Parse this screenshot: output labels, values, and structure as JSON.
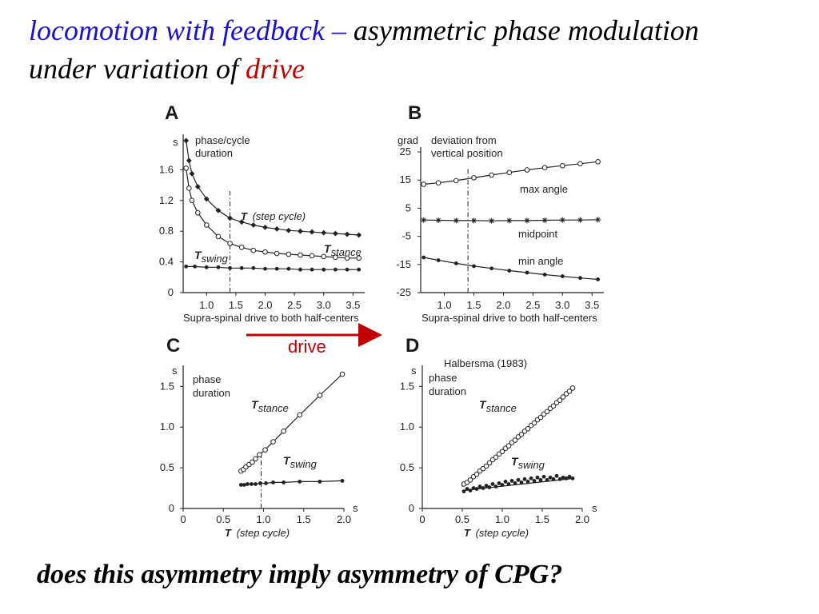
{
  "slide": {
    "title_part1": "locomotion with feedback –",
    "title_part2": " asymmetric phase modulation",
    "title_part3": "under variation of ",
    "title_part4": "drive",
    "question": "does this asymmetry imply asymmetry of CPG?",
    "arrow_label": "drive",
    "colors": {
      "title_blue": "#1a10d6",
      "accent_red": "#c00000",
      "ink": "#222222"
    }
  },
  "chart_data": [
    {
      "panel": "A",
      "type": "line",
      "ylabel_unit": "s",
      "note_line1": "phase/cycle",
      "note_line2": "duration",
      "xlabel": "Supra-spinal drive to both half-centers",
      "xticks": [
        "1.0",
        "1.5",
        "2.0",
        "2.5",
        "3.0",
        "3.5"
      ],
      "yticks": [
        "0",
        "0.4",
        "0.8",
        "1.2",
        "1.6"
      ],
      "xlim": [
        0.6,
        3.7
      ],
      "ylim": [
        0,
        2.0
      ],
      "reference_line_x": 1.4,
      "series": [
        {
          "name": "T",
          "name_suffix": "(step cycle)",
          "marker": "diamond",
          "x": [
            0.65,
            0.7,
            0.75,
            0.85,
            1.0,
            1.2,
            1.4,
            1.6,
            1.8,
            2.0,
            2.2,
            2.4,
            2.6,
            2.8,
            3.0,
            3.2,
            3.4,
            3.6
          ],
          "y": [
            1.98,
            1.72,
            1.55,
            1.38,
            1.22,
            1.07,
            0.97,
            0.92,
            0.88,
            0.85,
            0.83,
            0.81,
            0.8,
            0.79,
            0.78,
            0.77,
            0.76,
            0.75
          ]
        },
        {
          "name": "T",
          "name_sub": "stance",
          "marker": "open-circle",
          "x": [
            0.65,
            0.7,
            0.75,
            0.85,
            1.0,
            1.2,
            1.4,
            1.6,
            1.8,
            2.0,
            2.2,
            2.4,
            2.6,
            2.8,
            3.0,
            3.2,
            3.4,
            3.6
          ],
          "y": [
            1.62,
            1.36,
            1.2,
            1.04,
            0.88,
            0.73,
            0.64,
            0.59,
            0.55,
            0.53,
            0.51,
            0.5,
            0.49,
            0.48,
            0.47,
            0.46,
            0.45,
            0.45
          ]
        },
        {
          "name": "T",
          "name_sub": "swing",
          "marker": "dot",
          "x": [
            0.65,
            0.8,
            1.0,
            1.2,
            1.4,
            1.6,
            1.8,
            2.0,
            2.2,
            2.4,
            2.6,
            2.8,
            3.0,
            3.2,
            3.4,
            3.6
          ],
          "y": [
            0.34,
            0.34,
            0.33,
            0.33,
            0.32,
            0.32,
            0.32,
            0.31,
            0.31,
            0.31,
            0.3,
            0.3,
            0.3,
            0.3,
            0.3,
            0.3
          ]
        }
      ]
    },
    {
      "panel": "B",
      "type": "line",
      "ylabel_unit": "grad",
      "note_line1": "deviation from",
      "note_line2": "vertical position",
      "xlabel": "Supra-spinal drive to both half-centers",
      "xticks": [
        "1.0",
        "1.5",
        "2.0",
        "2.5",
        "3.0",
        "3.5"
      ],
      "yticks": [
        "25",
        "15",
        "5",
        "-5",
        "-15",
        "-25"
      ],
      "xlim": [
        0.6,
        3.7
      ],
      "ylim": [
        -25,
        25
      ],
      "reference_line_x": 1.4,
      "series": [
        {
          "name": "max angle",
          "marker": "open-circle",
          "x": [
            0.65,
            0.9,
            1.2,
            1.5,
            1.8,
            2.1,
            2.4,
            2.7,
            3.0,
            3.3,
            3.6
          ],
          "y": [
            13.5,
            14.0,
            14.8,
            15.8,
            16.8,
            17.7,
            18.6,
            19.4,
            20.1,
            20.8,
            21.5
          ]
        },
        {
          "name": "midpoint",
          "marker": "asterisk",
          "x": [
            0.65,
            0.9,
            1.2,
            1.5,
            1.8,
            2.1,
            2.4,
            2.7,
            3.0,
            3.3,
            3.6
          ],
          "y": [
            0.8,
            0.7,
            0.6,
            0.6,
            0.5,
            0.6,
            0.6,
            0.7,
            0.8,
            0.8,
            0.9
          ]
        },
        {
          "name": "min angle",
          "marker": "dot",
          "x": [
            0.65,
            0.9,
            1.2,
            1.5,
            1.8,
            2.1,
            2.4,
            2.7,
            3.0,
            3.3,
            3.6
          ],
          "y": [
            -12.5,
            -13.5,
            -14.6,
            -15.6,
            -16.4,
            -17.2,
            -17.9,
            -18.6,
            -19.2,
            -19.8,
            -20.3
          ]
        }
      ]
    },
    {
      "panel": "C",
      "type": "line",
      "ylabel_unit": "s",
      "xlabel_unit": "s",
      "note_line1": "phase",
      "note_line2": "duration",
      "xlabel_T": "T",
      "xlabel": "(step cycle)",
      "xticks": [
        "0",
        "0.5",
        "1.0",
        "1.5",
        "2.0"
      ],
      "yticks": [
        "0",
        "0.5",
        "1.0",
        "1.5"
      ],
      "xlim": [
        0,
        2.0
      ],
      "ylim": [
        0,
        1.7
      ],
      "reference_line_x": 0.97,
      "series": [
        {
          "name": "T",
          "name_sub": "stance",
          "marker": "open-circle",
          "x": [
            0.72,
            0.75,
            0.78,
            0.82,
            0.86,
            0.9,
            0.95,
            1.02,
            1.12,
            1.25,
            1.45,
            1.7,
            1.98
          ],
          "y": [
            0.46,
            0.48,
            0.51,
            0.54,
            0.57,
            0.61,
            0.66,
            0.72,
            0.82,
            0.95,
            1.15,
            1.39,
            1.65
          ]
        },
        {
          "name": "T",
          "name_sub": "swing",
          "marker": "dot",
          "x": [
            0.72,
            0.76,
            0.8,
            0.85,
            0.9,
            0.96,
            1.03,
            1.12,
            1.25,
            1.45,
            1.7,
            1.98
          ],
          "y": [
            0.29,
            0.29,
            0.3,
            0.3,
            0.3,
            0.31,
            0.31,
            0.32,
            0.32,
            0.33,
            0.33,
            0.34
          ]
        }
      ]
    },
    {
      "panel": "D",
      "type": "scatter",
      "title": "Halbersma (1983)",
      "ylabel_unit": "s",
      "xlabel_unit": "s",
      "note_line1": "phase",
      "note_line2": "duration",
      "xlabel_T": "T",
      "xlabel": "(step cycle)",
      "xticks": [
        "0",
        "0.5",
        "1.0",
        "1.5",
        "2.0"
      ],
      "yticks": [
        "0",
        "0.5",
        "1.0",
        "1.5"
      ],
      "xlim": [
        0,
        2.0
      ],
      "ylim": [
        0,
        1.7
      ],
      "series": [
        {
          "name": "T",
          "name_sub": "stance",
          "marker": "open-circle",
          "fit": [
            [
              0.5,
              0.27
            ],
            [
              1.9,
              1.5
            ]
          ],
          "x": [
            0.52,
            0.56,
            0.6,
            0.64,
            0.68,
            0.72,
            0.76,
            0.8,
            0.84,
            0.88,
            0.92,
            0.96,
            1.0,
            1.04,
            1.08,
            1.12,
            1.16,
            1.2,
            1.24,
            1.28,
            1.32,
            1.36,
            1.4,
            1.44,
            1.48,
            1.52,
            1.56,
            1.6,
            1.64,
            1.68,
            1.72,
            1.76,
            1.8,
            1.84,
            1.88
          ],
          "y": [
            0.3,
            0.32,
            0.35,
            0.39,
            0.42,
            0.46,
            0.49,
            0.52,
            0.56,
            0.6,
            0.63,
            0.67,
            0.7,
            0.74,
            0.77,
            0.81,
            0.84,
            0.88,
            0.91,
            0.95,
            0.98,
            1.02,
            1.05,
            1.09,
            1.12,
            1.16,
            1.19,
            1.23,
            1.26,
            1.3,
            1.33,
            1.37,
            1.41,
            1.44,
            1.48
          ]
        },
        {
          "name": "T",
          "name_sub": "swing",
          "marker": "dot",
          "fit": [
            [
              0.5,
              0.22
            ],
            [
              1.9,
              0.37
            ]
          ],
          "x": [
            0.52,
            0.56,
            0.6,
            0.64,
            0.68,
            0.72,
            0.76,
            0.8,
            0.84,
            0.88,
            0.92,
            0.96,
            1.0,
            1.04,
            1.08,
            1.12,
            1.16,
            1.2,
            1.24,
            1.28,
            1.32,
            1.36,
            1.4,
            1.44,
            1.48,
            1.52,
            1.56,
            1.6,
            1.64,
            1.68,
            1.72,
            1.76,
            1.8,
            1.84,
            1.88
          ],
          "y": [
            0.21,
            0.24,
            0.22,
            0.25,
            0.24,
            0.27,
            0.25,
            0.28,
            0.26,
            0.3,
            0.27,
            0.31,
            0.29,
            0.33,
            0.3,
            0.34,
            0.31,
            0.35,
            0.32,
            0.36,
            0.33,
            0.37,
            0.34,
            0.38,
            0.35,
            0.39,
            0.35,
            0.38,
            0.36,
            0.4,
            0.36,
            0.38,
            0.37,
            0.39,
            0.37
          ]
        }
      ]
    }
  ]
}
